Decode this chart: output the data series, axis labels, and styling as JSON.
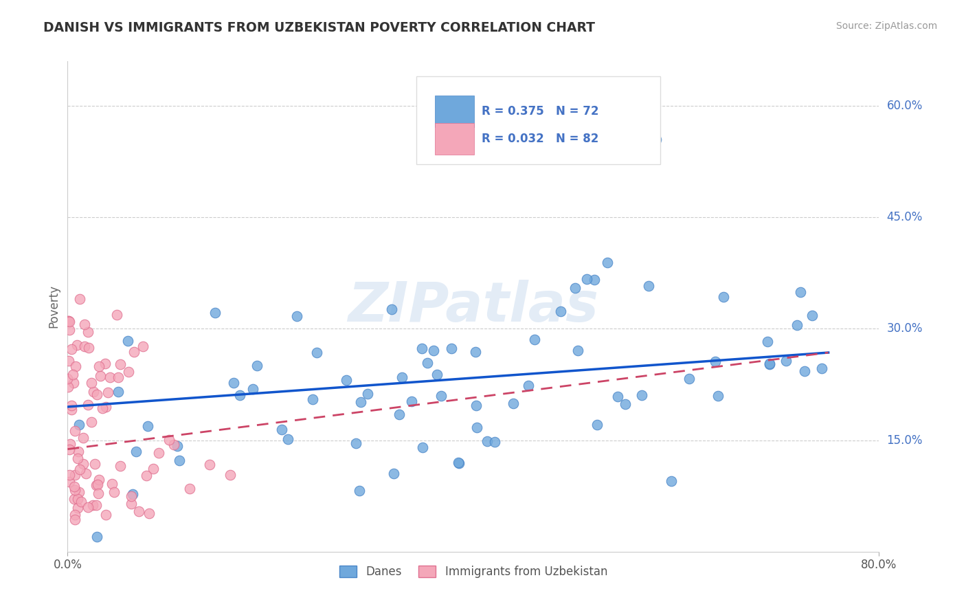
{
  "title": "DANISH VS IMMIGRANTS FROM UZBEKISTAN POVERTY CORRELATION CHART",
  "source": "Source: ZipAtlas.com",
  "ylabel": "Poverty",
  "xlim": [
    0.0,
    0.8
  ],
  "ylim": [
    0.0,
    0.66
  ],
  "ytick_positions": [
    0.15,
    0.3,
    0.45,
    0.6
  ],
  "ytick_labels": [
    "15.0%",
    "30.0%",
    "45.0%",
    "60.0%"
  ],
  "danes_color": "#6fa8dc",
  "danes_edge": "#4a86c8",
  "immigrants_color": "#f4a7b9",
  "immigrants_edge": "#e07090",
  "danes_R": 0.375,
  "danes_N": 72,
  "immigrants_R": 0.032,
  "immigrants_N": 82,
  "danes_line_color": "#1155cc",
  "immigrants_line_color": "#cc4466",
  "legend_label_danes": "Danes",
  "legend_label_immigrants": "Immigrants from Uzbekistan",
  "danes_line_x0": 0.0,
  "danes_line_y0": 0.195,
  "danes_line_x1": 0.75,
  "danes_line_y1": 0.268,
  "imm_line_x0": 0.0,
  "imm_line_y0": 0.138,
  "imm_line_x1": 0.75,
  "imm_line_y1": 0.268
}
